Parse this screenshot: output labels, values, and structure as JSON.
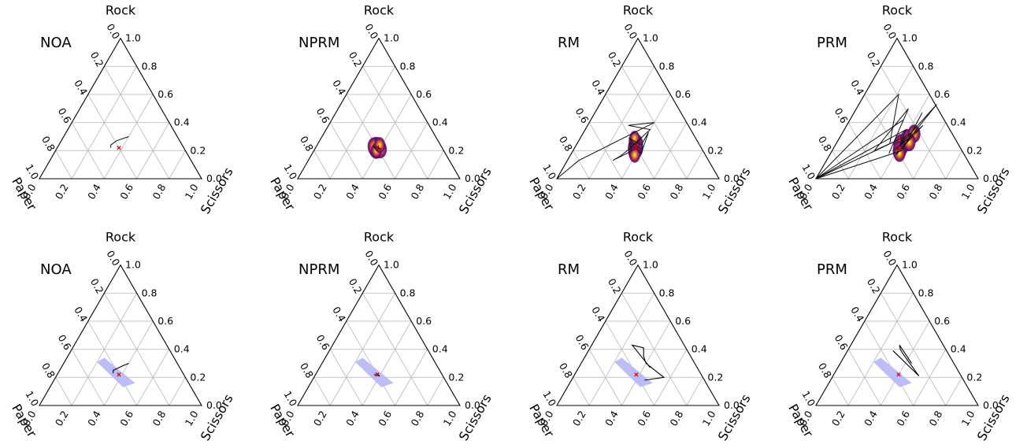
{
  "chart_data": {
    "type": "ternary",
    "axes": {
      "top_label": "Rock",
      "left_label": "Paper",
      "right_label": "Scissors",
      "ticks": [
        "0.0",
        "0.2",
        "0.4",
        "0.6",
        "0.8",
        "1.0"
      ]
    },
    "grid": true,
    "panels": [
      {
        "title": "NOA",
        "row": 0,
        "col": 0,
        "trajectory": [
          [
            0.3,
            0.4
          ],
          [
            0.29,
            0.38
          ],
          [
            0.27,
            0.34
          ],
          [
            0.24,
            0.32
          ],
          [
            0.22,
            0.33
          ]
        ],
        "equilibrium": [
          0.22,
          0.38
        ],
        "density": []
      },
      {
        "title": "NPRM",
        "row": 0,
        "col": 1,
        "trajectory": [
          [
            0.23,
            0.37
          ],
          [
            0.21,
            0.41
          ],
          [
            0.23,
            0.35
          ],
          [
            0.2,
            0.39
          ],
          [
            0.24,
            0.38
          ]
        ],
        "equilibrium": [
          0.22,
          0.38
        ],
        "density": [
          [
            0.22,
            0.38,
            1.0
          ],
          [
            0.21,
            0.4,
            0.7
          ],
          [
            0.23,
            0.36,
            0.7
          ],
          [
            0.2,
            0.38,
            0.5
          ],
          [
            0.24,
            0.39,
            0.5
          ]
        ]
      },
      {
        "title": "RM",
        "row": 0,
        "col": 2,
        "trajectory": [
          [
            0.0,
            0.0
          ],
          [
            0.13,
            0.07
          ],
          [
            0.4,
            0.4
          ],
          [
            0.38,
            0.25
          ],
          [
            0.35,
            0.4
          ],
          [
            0.21,
            0.34
          ],
          [
            0.16,
            0.31
          ],
          [
            0.13,
            0.28
          ],
          [
            0.22,
            0.39
          ],
          [
            0.29,
            0.3
          ],
          [
            0.24,
            0.4
          ],
          [
            0.33,
            0.4
          ],
          [
            0.18,
            0.43
          ],
          [
            0.26,
            0.32
          ],
          [
            0.2,
            0.36
          ]
        ],
        "equilibrium": [
          0.22,
          0.38
        ],
        "density": [
          [
            0.22,
            0.38,
            1.0
          ],
          [
            0.25,
            0.36,
            0.8
          ],
          [
            0.19,
            0.39,
            0.7
          ],
          [
            0.27,
            0.34,
            0.6
          ],
          [
            0.17,
            0.4,
            0.5
          ],
          [
            0.29,
            0.33,
            0.4
          ]
        ]
      },
      {
        "title": "PRM",
        "row": 0,
        "col": 3,
        "trajectory": [
          [
            0.0,
            0.0
          ],
          [
            0.6,
            0.21
          ],
          [
            0.25,
            0.33
          ],
          [
            0.2,
            0.26
          ],
          [
            0.5,
            0.32
          ],
          [
            0.18,
            0.36
          ],
          [
            0.42,
            0.33
          ],
          [
            0.0,
            0.0
          ],
          [
            0.35,
            0.38
          ],
          [
            0.17,
            0.41
          ],
          [
            0.53,
            0.48
          ],
          [
            0.21,
            0.39
          ],
          [
            0.38,
            0.47
          ],
          [
            0.25,
            0.43
          ],
          [
            0.47,
            0.42
          ],
          [
            0.2,
            0.43
          ],
          [
            0.0,
            0.0
          ],
          [
            0.3,
            0.4
          ],
          [
            0.23,
            0.4
          ]
        ],
        "equilibrium": [
          0.22,
          0.4
        ],
        "density": [
          [
            0.24,
            0.41,
            1.0
          ],
          [
            0.28,
            0.42,
            0.9
          ],
          [
            0.2,
            0.42,
            0.8
          ],
          [
            0.32,
            0.44,
            0.7
          ],
          [
            0.18,
            0.43,
            0.6
          ],
          [
            0.26,
            0.44,
            0.7
          ]
        ]
      },
      {
        "title": "NOA",
        "row": 1,
        "col": 0,
        "trajectory": [
          [
            0.3,
            0.4
          ],
          [
            0.28,
            0.37
          ],
          [
            0.25,
            0.33
          ],
          [
            0.23,
            0.34
          ]
        ],
        "equilibrium": [
          0.22,
          0.38
        ],
        "region": [
          [
            0.34,
            0.23
          ],
          [
            0.31,
            0.2
          ],
          [
            0.13,
            0.45
          ],
          [
            0.16,
            0.51
          ]
        ],
        "density": []
      },
      {
        "title": "NPRM",
        "row": 1,
        "col": 1,
        "trajectory": [
          [
            0.23,
            0.37
          ],
          [
            0.21,
            0.4
          ],
          [
            0.22,
            0.36
          ]
        ],
        "equilibrium": [
          0.22,
          0.38
        ],
        "region": [
          [
            0.34,
            0.23
          ],
          [
            0.31,
            0.2
          ],
          [
            0.13,
            0.45
          ],
          [
            0.16,
            0.51
          ]
        ],
        "density": []
      },
      {
        "title": "RM",
        "row": 1,
        "col": 2,
        "trajectory": [
          [
            0.27,
            0.44
          ],
          [
            0.43,
            0.25
          ],
          [
            0.41,
            0.33
          ],
          [
            0.35,
            0.36
          ],
          [
            0.3,
            0.4
          ],
          [
            0.2,
            0.56
          ],
          [
            0.18,
            0.45
          ]
        ],
        "equilibrium": [
          0.22,
          0.38
        ],
        "region": [
          [
            0.34,
            0.23
          ],
          [
            0.31,
            0.2
          ],
          [
            0.13,
            0.45
          ],
          [
            0.16,
            0.51
          ]
        ],
        "density": []
      },
      {
        "title": "PRM",
        "row": 1,
        "col": 3,
        "trajectory": [
          [
            0.3,
            0.44
          ],
          [
            0.43,
            0.3
          ],
          [
            0.4,
            0.32
          ],
          [
            0.37,
            0.35
          ],
          [
            0.21,
            0.53
          ],
          [
            0.39,
            0.28
          ]
        ],
        "equilibrium": [
          0.22,
          0.4
        ],
        "region": [
          [
            0.34,
            0.23
          ],
          [
            0.31,
            0.2
          ],
          [
            0.13,
            0.45
          ],
          [
            0.16,
            0.51
          ]
        ],
        "density": []
      }
    ]
  }
}
